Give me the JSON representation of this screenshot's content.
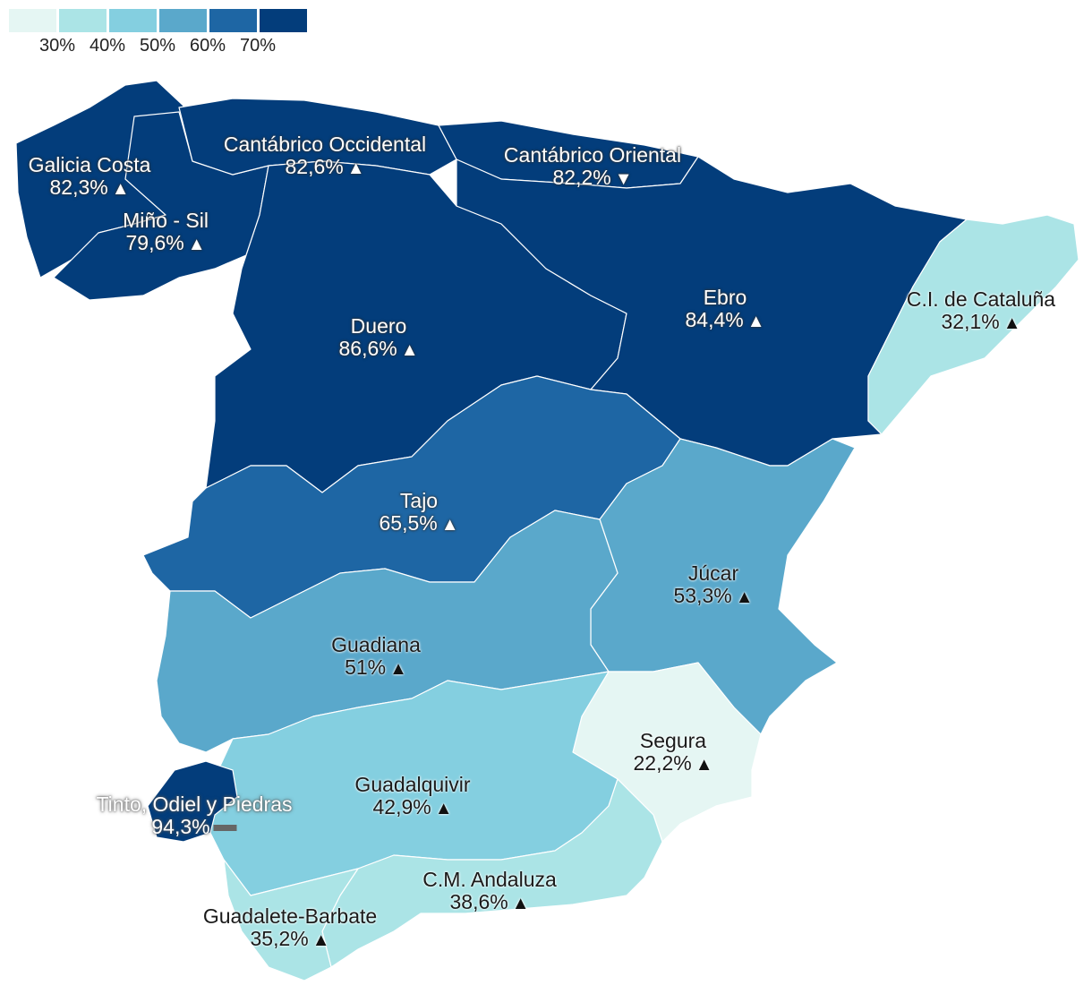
{
  "legend": {
    "labels": [
      "30%",
      "40%",
      "50%",
      "60%",
      "70%"
    ],
    "colors": [
      "#e5f6f3",
      "#abe4e6",
      "#84cfe0",
      "#5aa8cb",
      "#1e66a4",
      "#033d7b"
    ]
  },
  "basins": [
    {
      "id": "galicia-costa",
      "name": "Galicia Costa",
      "value": "82,3%",
      "trend": "up",
      "color": "#033d7b"
    },
    {
      "id": "mino-sil",
      "name": "Miño - Sil",
      "value": "79,6%",
      "trend": "up",
      "color": "#033d7b"
    },
    {
      "id": "cantabrico-occidental",
      "name": "Cantábrico Occidental",
      "value": "82,6%",
      "trend": "up",
      "color": "#033d7b"
    },
    {
      "id": "cantabrico-oriental",
      "name": "Cantábrico Oriental",
      "value": "82,2%",
      "trend": "down",
      "color": "#033d7b"
    },
    {
      "id": "duero",
      "name": "Duero",
      "value": "86,6%",
      "trend": "up",
      "color": "#033d7b"
    },
    {
      "id": "ebro",
      "name": "Ebro",
      "value": "84,4%",
      "trend": "up",
      "color": "#033d7b"
    },
    {
      "id": "ci-cataluna",
      "name": "C.I. de Cataluña",
      "value": "32,1%",
      "trend": "up",
      "color": "#abe4e6"
    },
    {
      "id": "tajo",
      "name": "Tajo",
      "value": "65,5%",
      "trend": "up",
      "color": "#1e66a4"
    },
    {
      "id": "jucar",
      "name": "Júcar",
      "value": "53,3%",
      "trend": "up",
      "color": "#5aa8cb"
    },
    {
      "id": "guadiana",
      "name": "Guadiana",
      "value": "51%",
      "trend": "up",
      "color": "#5aa8cb"
    },
    {
      "id": "segura",
      "name": "Segura",
      "value": "22,2%",
      "trend": "up",
      "color": "#e5f6f3"
    },
    {
      "id": "guadalquivir",
      "name": "Guadalquivir",
      "value": "42,9%",
      "trend": "up",
      "color": "#84cfe0"
    },
    {
      "id": "tinto-odiel-piedras",
      "name": "Tinto, Odiel y Piedras",
      "value": "94,3%",
      "trend": "flat",
      "color": "#033d7b"
    },
    {
      "id": "cm-andaluza",
      "name": "C.M. Andaluza",
      "value": "38,6%",
      "trend": "up",
      "color": "#abe4e6"
    },
    {
      "id": "guadalete-barbate",
      "name": "Guadalete-Barbate",
      "value": "35,2%",
      "trend": "up",
      "color": "#abe4e6"
    }
  ]
}
